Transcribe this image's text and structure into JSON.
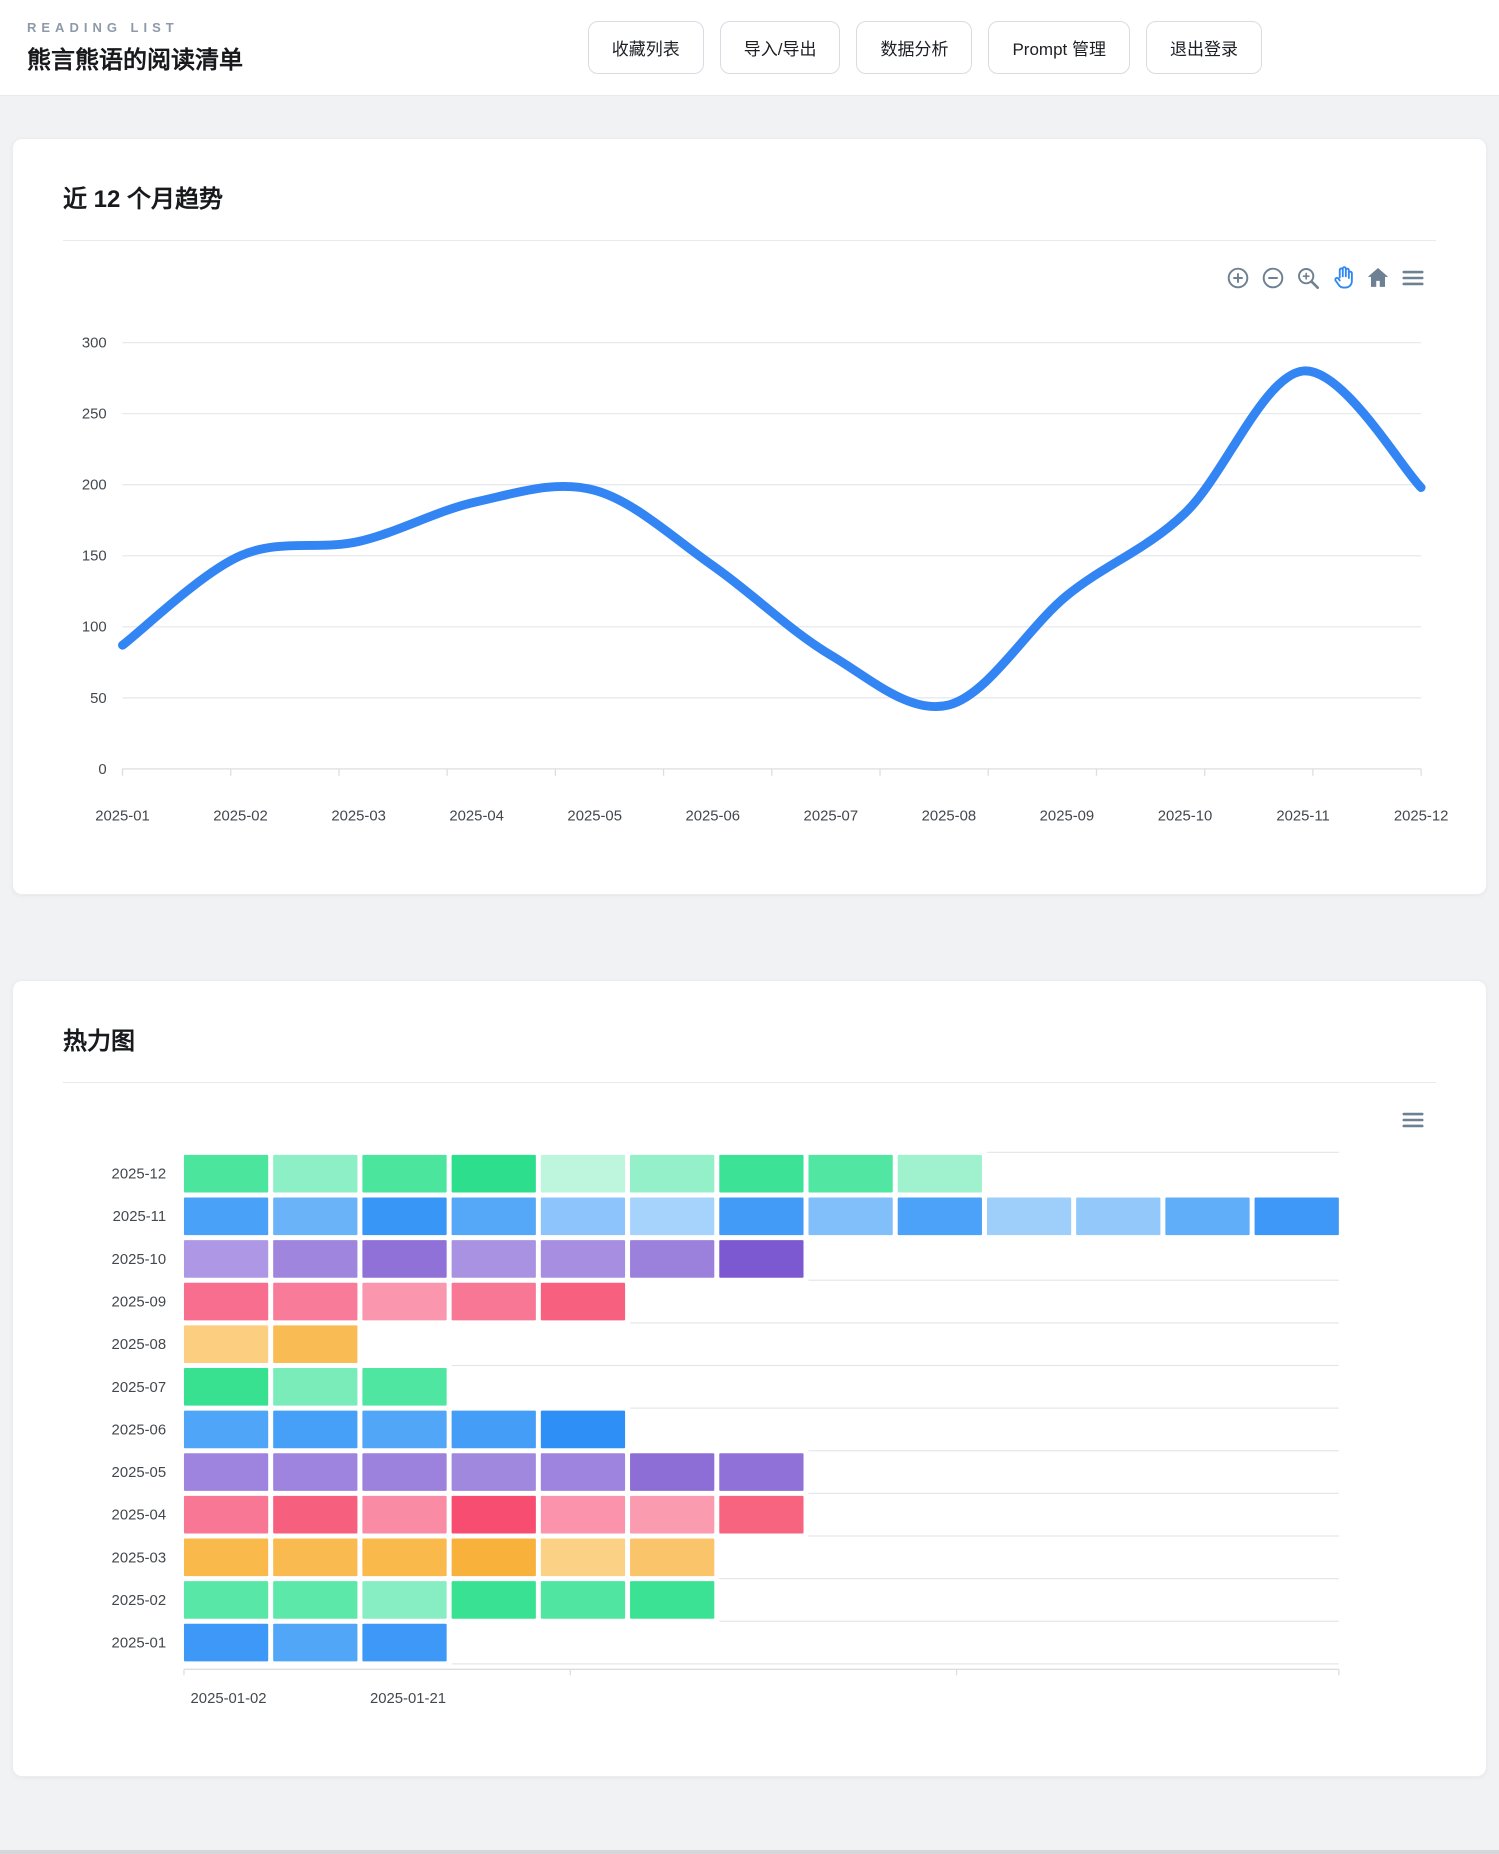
{
  "header": {
    "eyebrow": "READING LIST",
    "title": "熊言熊语的阅读清单",
    "buttons": [
      {
        "label": "收藏列表"
      },
      {
        "label": "导入/导出"
      },
      {
        "label": "数据分析"
      },
      {
        "label": "Prompt 管理"
      },
      {
        "label": "退出登录"
      }
    ]
  },
  "trend_card": {
    "title": "近 12 个月趋势"
  },
  "heatmap_card": {
    "title": "热力图"
  },
  "colors": {
    "line": "#3385F3",
    "toolbar_icon": "#6E8192",
    "toolbar_active_icon": "#2F87F1",
    "grid": "#e8e9eb",
    "axis_label": "#42484d"
  },
  "chart_data": [
    {
      "type": "line",
      "title": "近 12 个月趋势",
      "x": [
        "2025-01",
        "2025-02",
        "2025-03",
        "2025-04",
        "2025-05",
        "2025-06",
        "2025-07",
        "2025-08",
        "2025-09",
        "2025-10",
        "2025-11",
        "2025-12"
      ],
      "series": [
        {
          "values": [
            87,
            150,
            160,
            188,
            196,
            143,
            80,
            45,
            122,
            180,
            280,
            198
          ]
        }
      ],
      "ylim": [
        0,
        300
      ],
      "yticks": [
        0,
        50,
        100,
        150,
        200,
        250,
        300
      ],
      "grid": true,
      "smooth": true,
      "legend": "none",
      "toolbar": [
        "zoom-in",
        "zoom-out",
        "selection-zoom",
        "pan",
        "reset-home",
        "menu"
      ]
    },
    {
      "type": "heatmap",
      "title": "热力图",
      "xticks": [
        "2025-01-02",
        "2025-01-21"
      ],
      "rows": [
        {
          "label": "2025-12",
          "cells": [
            "#4BE59E",
            "#8DEFC5",
            "#4BE59E",
            "#2DDF8D",
            "#BDF6DD",
            "#93F0C9",
            "#3CE296",
            "#52E6A3",
            "#A0F2CF"
          ]
        },
        {
          "label": "2025-11",
          "cells": [
            "#4AA1F8",
            "#6AB3F9",
            "#3896F7",
            "#55A8F8",
            "#8CC4FB",
            "#A6D3FC",
            "#419BF7",
            "#81BFFA",
            "#4BA2F8",
            "#9ECFFB",
            "#93C8FB",
            "#60ADF9",
            "#3D98F7"
          ]
        },
        {
          "label": "2025-10",
          "cells": [
            "#AE97E4",
            "#9F85DE",
            "#8F71D8",
            "#AA92E2",
            "#A78EE1",
            "#9B80DC",
            "#7C59D1"
          ]
        },
        {
          "label": "2025-09",
          "cells": [
            "#F86E8E",
            "#F87C99",
            "#FA96AD",
            "#F87795",
            "#F7607F"
          ]
        },
        {
          "label": "2025-08",
          "cells": [
            "#FBCE80",
            "#F9BC55"
          ]
        },
        {
          "label": "2025-07",
          "cells": [
            "#37E190",
            "#79ECBA",
            "#4FE6A1"
          ]
        },
        {
          "label": "2025-06",
          "cells": [
            "#4FA5F8",
            "#47A0F7",
            "#51A6F8",
            "#449EF7",
            "#2E90F6"
          ]
        },
        {
          "label": "2025-05",
          "cells": [
            "#9E84DE",
            "#9E84DE",
            "#9C81DD",
            "#A188DF",
            "#9E84DE",
            "#8D6ED7",
            "#8F71D8"
          ]
        },
        {
          "label": "2025-04",
          "cells": [
            "#F87795",
            "#F75F7F",
            "#F98BA5",
            "#F64D70",
            "#FA93AB",
            "#FA9BB0",
            "#F7647F"
          ]
        },
        {
          "label": "2025-03",
          "cells": [
            "#F9B94B",
            "#F9BB50",
            "#F9B94B",
            "#F8B23B",
            "#FBD186",
            "#FAC46A"
          ]
        },
        {
          "label": "2025-02",
          "cells": [
            "#58E7A7",
            "#5BE8A9",
            "#86EEC2",
            "#39E292",
            "#50E6A2",
            "#3BE293"
          ]
        },
        {
          "label": "2025-01",
          "cells": [
            "#3D98F7",
            "#52A6F8",
            "#3D98F7"
          ]
        }
      ]
    }
  ]
}
